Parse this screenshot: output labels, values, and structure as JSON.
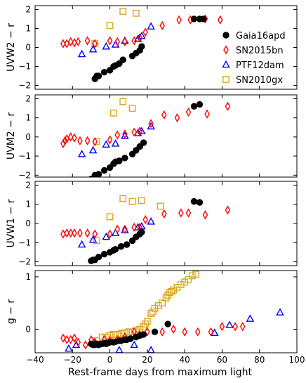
{
  "figure": {
    "xlabel": "Rest-frame days from maximum light"
  },
  "legend": {
    "position": "upper-right of first panel",
    "entries": [
      {
        "name": "Gaia16apd",
        "marker": "filled-circle",
        "color": "#000000"
      },
      {
        "name": "SN2015bn",
        "marker": "open-diamond",
        "color": "#ff0000"
      },
      {
        "name": "PTF12dam",
        "marker": "open-triangle",
        "color": "#0000ff"
      },
      {
        "name": "SN2010gx",
        "marker": "open-square",
        "color": "#daa520"
      }
    ]
  },
  "chart_data": [
    {
      "type": "scatter",
      "ylabel": "UVW2 − r",
      "xlim": [
        -40,
        100
      ],
      "ylim": [
        -2.2,
        2.2
      ],
      "xticks": [
        -40,
        -20,
        0,
        20,
        40,
        60,
        80,
        100
      ],
      "yticks": [
        -2,
        -1,
        0,
        1,
        2
      ],
      "series": [
        {
          "name": "Gaia16apd",
          "marker": "filled-circle",
          "color": "#000000",
          "x": [
            -8,
            -7,
            -6,
            -3,
            0,
            2,
            3,
            5,
            7,
            12,
            14,
            16,
            17,
            45,
            48,
            50
          ],
          "y": [
            -1.65,
            -1.5,
            -1.5,
            -1.3,
            -1.2,
            -1.0,
            -0.95,
            -0.85,
            -0.65,
            -0.45,
            -0.3,
            -0.15,
            0.05,
            1.5,
            1.5,
            1.5
          ]
        },
        {
          "name": "SN2015bn",
          "marker": "open-diamond",
          "color": "#ff0000",
          "x": [
            -25,
            -23,
            -21,
            -19,
            -17,
            -12,
            -8,
            0,
            4,
            8,
            13,
            16,
            19,
            28,
            37,
            43,
            51,
            59
          ],
          "y": [
            0.2,
            0.2,
            0.3,
            0.25,
            0.3,
            0.35,
            0.2,
            0.35,
            0.3,
            0.3,
            0.35,
            0.5,
            0.8,
            1.15,
            1.45,
            1.45,
            1.5,
            1.45
          ]
        },
        {
          "name": "PTF12dam",
          "marker": "open-triangle",
          "color": "#0000ff",
          "x": [
            -15,
            -9,
            -2,
            3,
            8,
            15,
            17,
            22
          ],
          "y": [
            -0.35,
            -0.1,
            0.05,
            0.15,
            0.35,
            0.45,
            0.6,
            1.1
          ]
        },
        {
          "name": "SN2010gx",
          "marker": "open-square",
          "color": "#daa520",
          "x": [
            -8,
            0,
            7,
            14
          ],
          "y": [
            0.2,
            1.15,
            1.9,
            1.8
          ]
        }
      ]
    },
    {
      "type": "scatter",
      "ylabel": "UVM2 − r",
      "xlim": [
        -40,
        100
      ],
      "ylim": [
        -2.1,
        2.2
      ],
      "xticks": [
        -40,
        -20,
        0,
        20,
        40,
        60,
        80,
        100
      ],
      "yticks": [
        -2,
        -1,
        0,
        1,
        2
      ],
      "series": [
        {
          "name": "Gaia16apd",
          "marker": "filled-circle",
          "color": "#000000",
          "x": [
            -10,
            -8,
            -6,
            -3,
            0,
            2,
            3,
            5,
            8,
            12,
            14,
            16,
            18,
            45,
            48
          ],
          "y": [
            -2.2,
            -2.0,
            -1.95,
            -1.75,
            -1.6,
            -1.4,
            -1.3,
            -1.25,
            -1.1,
            -0.9,
            -0.7,
            -0.5,
            -0.3,
            1.6,
            1.7
          ]
        },
        {
          "name": "SN2015bn",
          "marker": "open-diamond",
          "color": "#ff0000",
          "x": [
            -25,
            -24,
            -23,
            -21,
            -19,
            -16,
            -12,
            -8,
            0,
            4,
            8,
            13,
            16,
            22,
            29,
            36,
            42,
            52,
            63
          ],
          "y": [
            -0.35,
            -0.2,
            -0.1,
            0.0,
            -0.05,
            -0.2,
            -0.2,
            -0.25,
            -0.15,
            0.1,
            0.15,
            0.25,
            0.3,
            0.7,
            1.15,
            1.0,
            1.3,
            1.2,
            1.6
          ]
        },
        {
          "name": "PTF12dam",
          "marker": "open-triangle",
          "color": "#0000ff",
          "x": [
            -15,
            -9,
            -2,
            3,
            8,
            15,
            17,
            22
          ],
          "y": [
            -0.9,
            -0.7,
            -0.4,
            -0.35,
            0.05,
            0.2,
            0.3,
            0.55
          ]
        },
        {
          "name": "SN2010gx",
          "marker": "open-square",
          "color": "#daa520",
          "x": [
            -7,
            2,
            7,
            12
          ],
          "y": [
            -0.25,
            1.25,
            1.85,
            1.5
          ]
        }
      ]
    },
    {
      "type": "scatter",
      "ylabel": "UVW1 − r",
      "xlim": [
        -40,
        100
      ],
      "ylim": [
        -2.2,
        2.2
      ],
      "xticks": [
        -40,
        -20,
        0,
        20,
        40,
        60,
        80,
        100
      ],
      "yticks": [
        -2,
        -1,
        0,
        1,
        2
      ],
      "series": [
        {
          "name": "Gaia16apd",
          "marker": "filled-circle",
          "color": "#000000",
          "x": [
            -10,
            -9,
            -8,
            -6,
            -3,
            0,
            2,
            3,
            6,
            9,
            12,
            14,
            16,
            17,
            45,
            48
          ],
          "y": [
            -1.95,
            -1.9,
            -1.9,
            -1.75,
            -1.6,
            -1.5,
            -1.4,
            -1.35,
            -1.2,
            -1.1,
            -0.9,
            -0.7,
            -0.55,
            -0.45,
            1.15,
            1.1
          ]
        },
        {
          "name": "SN2015bn",
          "marker": "open-diamond",
          "color": "#ff0000",
          "x": [
            -25,
            -23,
            -21,
            -19,
            -16,
            -12,
            -8,
            0,
            4,
            8,
            13,
            16,
            19,
            29,
            38,
            42,
            51,
            63
          ],
          "y": [
            -0.55,
            -0.5,
            -0.5,
            -0.5,
            -0.5,
            -0.5,
            -0.55,
            -0.55,
            -0.3,
            -0.3,
            -0.2,
            -0.2,
            0.2,
            0.5,
            0.55,
            0.55,
            0.45,
            0.7
          ]
        },
        {
          "name": "PTF12dam",
          "marker": "open-triangle",
          "color": "#0000ff",
          "x": [
            -15,
            -9,
            -2,
            3,
            8,
            15,
            17,
            22
          ],
          "y": [
            -1.1,
            -0.85,
            -0.7,
            -0.5,
            -0.35,
            -0.2,
            -0.15,
            0.1
          ]
        },
        {
          "name": "SN2010gx",
          "marker": "open-square",
          "color": "#daa520",
          "x": [
            -7,
            0,
            7,
            12,
            17,
            27
          ],
          "y": [
            -0.9,
            0.35,
            1.3,
            1.15,
            1.2,
            0.9
          ]
        }
      ]
    },
    {
      "type": "scatter",
      "ylabel": "g − r",
      "xlim": [
        -40,
        100
      ],
      "ylim": [
        -0.45,
        1.12
      ],
      "xticks": [
        -40,
        -20,
        0,
        20,
        40,
        60,
        80,
        100
      ],
      "xticklabels": [
        "−40",
        "−20",
        "0",
        "20",
        "40",
        "60",
        "80",
        "100"
      ],
      "yticks": [
        0,
        1
      ],
      "series": [
        {
          "name": "Gaia16apd",
          "marker": "filled-circle",
          "color": "#000000",
          "x": [
            -10,
            -9,
            -8,
            -7,
            -6,
            -5,
            -4,
            -3,
            -2,
            -1,
            0,
            2,
            3,
            5,
            6,
            8,
            9,
            11,
            14,
            16,
            18,
            24,
            31
          ],
          "y": [
            -0.28,
            -0.3,
            -0.3,
            -0.28,
            -0.3,
            -0.28,
            -0.28,
            -0.27,
            -0.28,
            -0.26,
            -0.25,
            -0.25,
            -0.24,
            -0.22,
            -0.22,
            -0.2,
            -0.2,
            -0.18,
            -0.15,
            -0.12,
            -0.1,
            -0.05,
            0.1
          ]
        },
        {
          "name": "SN2015bn",
          "marker": "open-diamond",
          "color": "#ff0000",
          "x": [
            -25,
            -23,
            -21,
            -19,
            -17,
            -13,
            -10,
            -8,
            -3,
            0,
            4,
            8,
            13,
            16,
            20,
            28,
            34,
            40,
            47,
            54,
            60,
            67,
            71
          ],
          "y": [
            -0.17,
            -0.2,
            -0.2,
            -0.17,
            -0.25,
            -0.3,
            -0.2,
            -0.25,
            -0.2,
            -0.22,
            -0.2,
            -0.15,
            -0.05,
            -0.1,
            -0.05,
            -0.05,
            0.0,
            -0.05,
            -0.05,
            -0.05,
            0.05,
            0.05,
            0.05
          ]
        },
        {
          "name": "PTF12dam",
          "marker": "open-triangle",
          "color": "#0000ff",
          "x": [
            -22,
            -18,
            -8,
            5,
            13,
            22,
            56,
            64,
            75,
            91
          ],
          "y": [
            -0.37,
            -0.3,
            -0.28,
            -0.4,
            -0.3,
            -0.4,
            -0.07,
            0.08,
            0.2,
            0.32
          ]
        },
        {
          "name": "SN2010gx",
          "marker": "open-square",
          "color": "#daa520",
          "x": [
            -7,
            -4,
            -2,
            0,
            2,
            4,
            6,
            8,
            10,
            12,
            14,
            16,
            18,
            19,
            20,
            22,
            23,
            24,
            26,
            28,
            30,
            31,
            32,
            33,
            34,
            36,
            38,
            40,
            42,
            44,
            46
          ],
          "y": [
            -0.22,
            -0.15,
            -0.15,
            -0.12,
            -0.1,
            -0.1,
            -0.08,
            -0.07,
            -0.05,
            -0.05,
            -0.03,
            0.0,
            0.05,
            0.1,
            0.15,
            0.3,
            0.33,
            0.4,
            0.45,
            0.5,
            0.6,
            0.65,
            0.7,
            0.72,
            0.75,
            0.8,
            0.85,
            0.9,
            0.95,
            1.02,
            1.05
          ]
        }
      ]
    }
  ]
}
